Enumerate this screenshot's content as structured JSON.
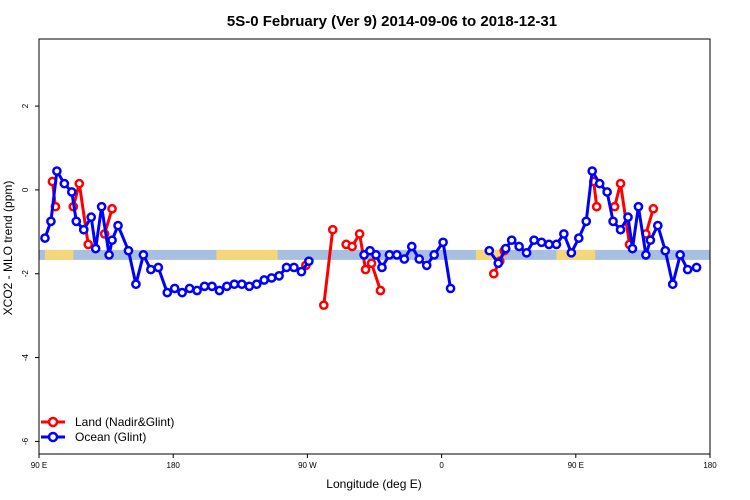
{
  "chart_data": {
    "type": "line",
    "title": "5S-0 February (Ver 9)   2014-09-06 to 2018-12-31",
    "xlabel": "Longitude (deg E)",
    "ylabel": "XCO2 - MLO trend (ppm)",
    "xlim": [
      90,
      540
    ],
    "ylim": [
      -6.3,
      3.6
    ],
    "x_ticks": [
      {
        "value": 90,
        "label": "90 E"
      },
      {
        "value": 180,
        "label": "180"
      },
      {
        "value": 270,
        "label": "90 W"
      },
      {
        "value": 360,
        "label": "0"
      },
      {
        "value": 450,
        "label": "90 E"
      },
      {
        "value": 540,
        "label": "180"
      }
    ],
    "y_ticks": [
      {
        "value": 2,
        "label": "2"
      },
      {
        "value": 0,
        "label": "0"
      },
      {
        "value": -2,
        "label": "-2"
      },
      {
        "value": -4,
        "label": "-4"
      },
      {
        "value": -6,
        "label": "-6"
      }
    ],
    "grid": false,
    "legend_position": "bottom-left",
    "band": {
      "y_center": -1.55,
      "ocean_color": "#a9bfdf",
      "land_color": "#f5d77a"
    },
    "land_segments": [
      [
        94,
        113
      ],
      [
        209,
        250
      ],
      [
        383,
        400
      ],
      [
        437,
        463
      ]
    ],
    "series": [
      {
        "name": "Land (Nadir&Glint)",
        "color": "#ff0000",
        "segments": [
          [
            [
              99,
              0.2
            ],
            [
              101,
              -0.4
            ]
          ],
          [
            [
              113,
              -0.4
            ],
            [
              117,
              0.15
            ],
            [
              123,
              -1.3
            ]
          ],
          [
            [
              134,
              -1.05
            ],
            [
              139,
              -0.45
            ]
          ],
          [
            [
              269,
              -1.8
            ]
          ],
          [
            [
              281,
              -2.75
            ],
            [
              287,
              -0.95
            ]
          ],
          [
            [
              296,
              -1.3
            ],
            [
              300,
              -1.35
            ],
            [
              305,
              -1.05
            ],
            [
              309,
              -1.9
            ],
            [
              313,
              -1.75
            ],
            [
              319,
              -2.4
            ]
          ],
          [
            [
              395,
              -2.0
            ],
            [
              399,
              -1.7
            ],
            [
              402,
              -1.45
            ]
          ],
          [
            [
              462,
              0.2
            ],
            [
              464,
              -0.4
            ]
          ],
          [
            [
              476,
              -0.4
            ],
            [
              480,
              0.15
            ],
            [
              486,
              -1.3
            ]
          ],
          [
            [
              497,
              -1.05
            ],
            [
              502,
              -0.45
            ]
          ]
        ]
      },
      {
        "name": "Ocean (Glint)",
        "color": "#0000ff",
        "segments": [
          [
            [
              94,
              -1.15
            ],
            [
              98,
              -0.75
            ],
            [
              102,
              0.45
            ],
            [
              107,
              0.15
            ],
            [
              112,
              -0.05
            ],
            [
              115,
              -0.75
            ],
            [
              120,
              -0.95
            ],
            [
              125,
              -0.65
            ],
            [
              128,
              -1.4
            ],
            [
              132,
              -0.4
            ],
            [
              137,
              -1.55
            ],
            [
              139,
              -1.2
            ],
            [
              143,
              -0.85
            ],
            [
              150,
              -1.45
            ],
            [
              155,
              -2.25
            ],
            [
              160,
              -1.55
            ],
            [
              165,
              -1.9
            ],
            [
              170,
              -1.85
            ],
            [
              176,
              -2.45
            ],
            [
              181,
              -2.35
            ],
            [
              186,
              -2.45
            ],
            [
              191,
              -2.35
            ],
            [
              196,
              -2.4
            ],
            [
              201,
              -2.3
            ],
            [
              206,
              -2.3
            ],
            [
              211,
              -2.4
            ],
            [
              216,
              -2.3
            ],
            [
              221,
              -2.25
            ],
            [
              226,
              -2.25
            ],
            [
              231,
              -2.3
            ],
            [
              236,
              -2.25
            ],
            [
              241,
              -2.15
            ],
            [
              246,
              -2.1
            ],
            [
              251,
              -2.05
            ],
            [
              256,
              -1.85
            ],
            [
              261,
              -1.85
            ],
            [
              266,
              -1.95
            ],
            [
              271,
              -1.7
            ]
          ],
          [
            [
              308,
              -1.55
            ],
            [
              312,
              -1.45
            ],
            [
              316,
              -1.55
            ],
            [
              320,
              -1.85
            ],
            [
              325,
              -1.55
            ],
            [
              330,
              -1.55
            ],
            [
              335,
              -1.65
            ],
            [
              340,
              -1.35
            ],
            [
              345,
              -1.65
            ],
            [
              350,
              -1.8
            ],
            [
              355,
              -1.55
            ],
            [
              361,
              -1.25
            ],
            [
              366,
              -2.35
            ]
          ],
          [
            [
              392,
              -1.45
            ],
            [
              398,
              -1.75
            ],
            [
              403,
              -1.4
            ],
            [
              407,
              -1.2
            ],
            [
              412,
              -1.35
            ],
            [
              417,
              -1.5
            ],
            [
              422,
              -1.2
            ],
            [
              427,
              -1.25
            ],
            [
              432,
              -1.3
            ],
            [
              437,
              -1.3
            ],
            [
              442,
              -1.05
            ],
            [
              447,
              -1.5
            ],
            [
              452,
              -1.15
            ],
            [
              457,
              -0.75
            ],
            [
              461,
              0.45
            ],
            [
              466,
              0.15
            ],
            [
              471,
              -0.05
            ],
            [
              475,
              -0.75
            ],
            [
              480,
              -0.95
            ],
            [
              485,
              -0.65
            ],
            [
              488,
              -1.4
            ],
            [
              492,
              -0.4
            ],
            [
              497,
              -1.55
            ],
            [
              500,
              -1.2
            ],
            [
              505,
              -0.85
            ],
            [
              510,
              -1.45
            ],
            [
              515,
              -2.25
            ],
            [
              520,
              -1.55
            ],
            [
              525,
              -1.9
            ],
            [
              531,
              -1.85
            ]
          ]
        ]
      }
    ]
  }
}
